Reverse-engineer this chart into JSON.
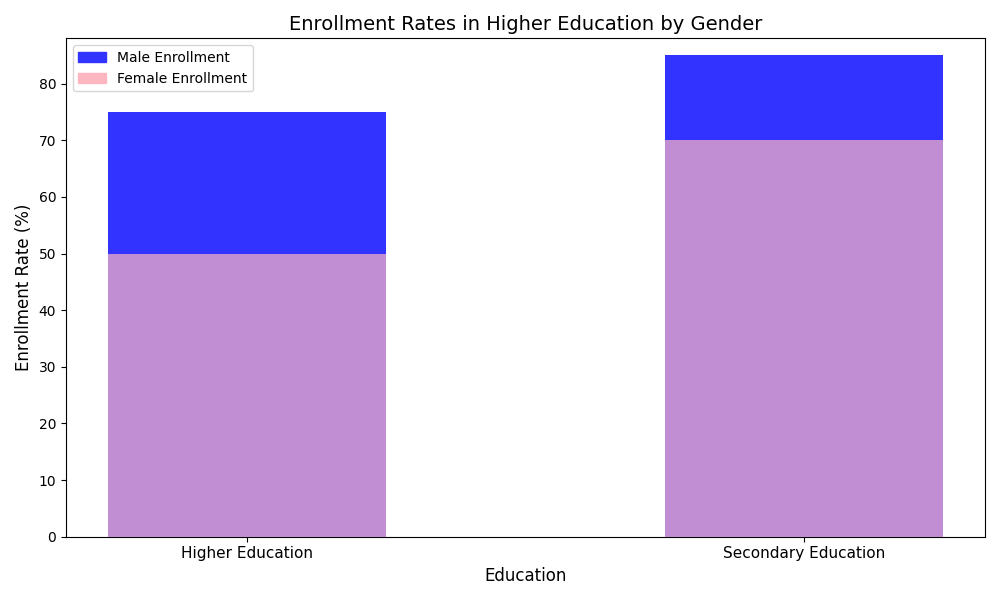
{
  "categories": [
    "Higher Education",
    "Secondary Education"
  ],
  "male_values": [
    75,
    85
  ],
  "female_values": [
    50,
    70
  ],
  "male_color": "#3333ff",
  "female_color": "#ffb6c1",
  "male_label": "Male Enrollment",
  "female_label": "Female Enrollment",
  "title": "Enrollment Rates in Higher Education by Gender",
  "xlabel": "Education",
  "ylabel": "Enrollment Rate (%)",
  "ylim": [
    0,
    88
  ],
  "bar_width": 0.5,
  "figsize": [
    10,
    6
  ],
  "dpi": 100
}
